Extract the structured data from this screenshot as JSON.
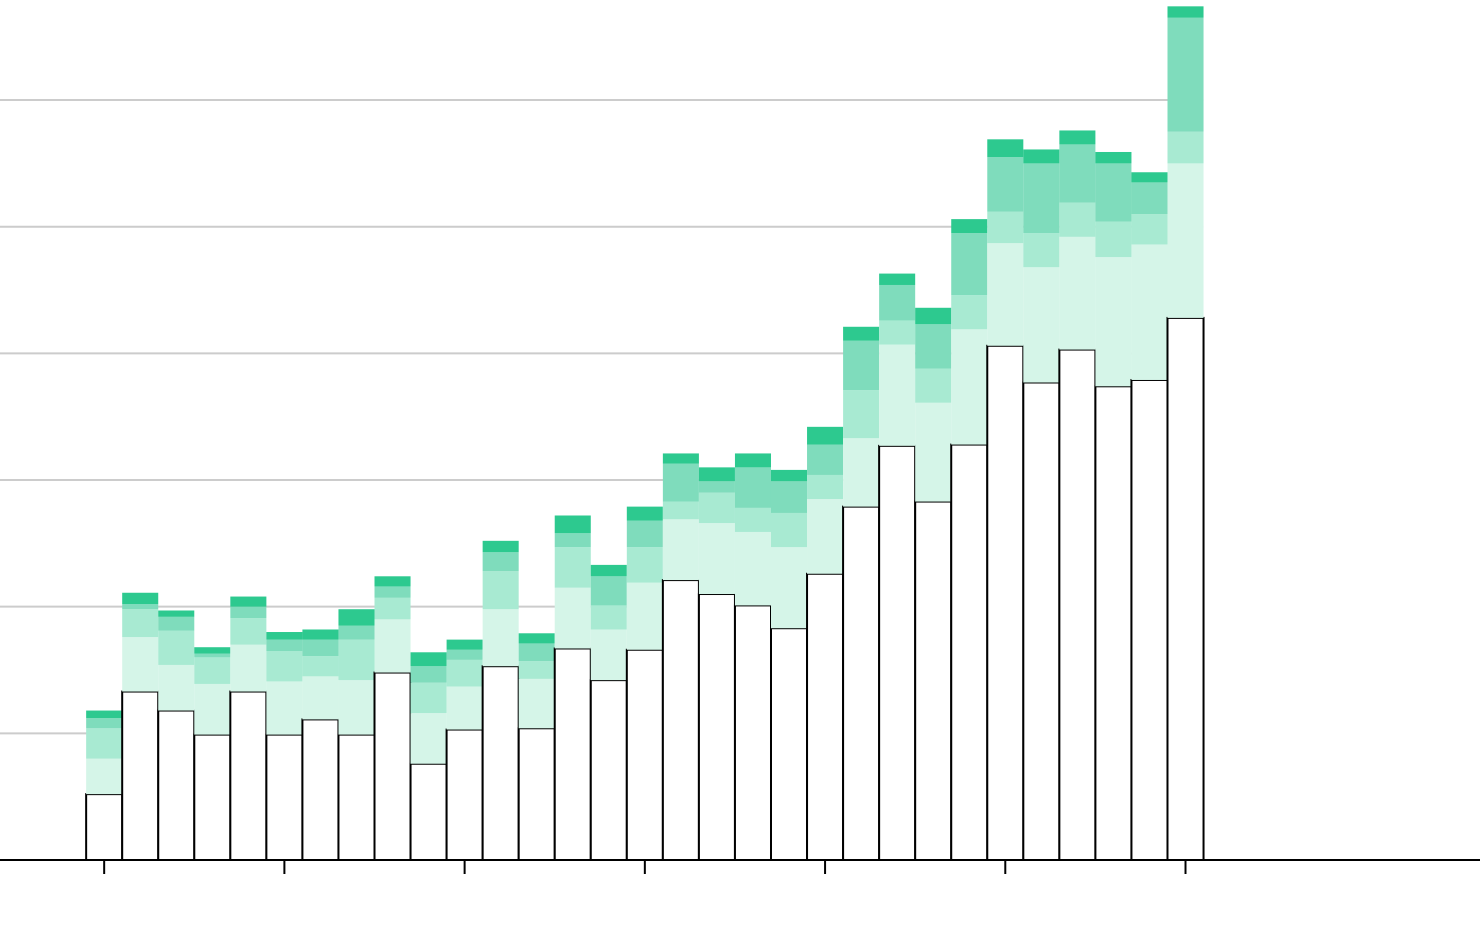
{
  "chart_data": {
    "type": "stacked-bar",
    "x": [
      0,
      1,
      2,
      3,
      4,
      5,
      6,
      7,
      8,
      9,
      10,
      11,
      12,
      13,
      14,
      15,
      16,
      17,
      18,
      19,
      20,
      21,
      22,
      23,
      24,
      25,
      26,
      27,
      28,
      29,
      30
    ],
    "xlim": [
      -2.89,
      38.17
    ],
    "xticks": [
      0,
      5,
      10,
      15,
      20,
      25,
      30
    ],
    "ylim": [
      0,
      6.79
    ],
    "yticks": [
      0,
      1,
      2,
      3,
      4,
      5,
      6
    ],
    "grid": true,
    "series": [
      {
        "color": "#ffffff",
        "values": [
          0.52,
          1.33,
          1.18,
          0.99,
          1.33,
          0.99,
          1.11,
          0.99,
          1.48,
          0.76,
          1.03,
          1.53,
          1.04,
          1.67,
          1.42,
          1.66,
          2.21,
          2.1,
          2.01,
          1.83,
          2.26,
          2.79,
          3.27,
          2.83,
          3.28,
          4.06,
          3.77,
          4.03,
          3.74,
          3.79,
          4.28
        ]
      },
      {
        "color": "#d5f5e8",
        "values": [
          0.28,
          0.43,
          0.36,
          0.4,
          0.37,
          0.42,
          0.34,
          0.43,
          0.42,
          0.4,
          0.34,
          0.45,
          0.39,
          0.48,
          0.4,
          0.53,
          0.48,
          0.56,
          0.58,
          0.64,
          0.59,
          0.54,
          0.8,
          0.78,
          0.91,
          0.81,
          0.91,
          0.89,
          1.02,
          1.07,
          1.22
        ]
      },
      {
        "color": "#a8ead2",
        "values": [
          0.24,
          0.22,
          0.27,
          0.21,
          0.21,
          0.24,
          0.16,
          0.32,
          0.17,
          0.24,
          0.21,
          0.3,
          0.14,
          0.32,
          0.19,
          0.28,
          0.14,
          0.24,
          0.19,
          0.27,
          0.19,
          0.38,
          0.19,
          0.27,
          0.27,
          0.25,
          0.27,
          0.27,
          0.28,
          0.24,
          0.25
        ]
      },
      {
        "color": "#7fdcbc",
        "values": [
          0.08,
          0.04,
          0.11,
          0.03,
          0.09,
          0.09,
          0.13,
          0.11,
          0.09,
          0.13,
          0.08,
          0.15,
          0.14,
          0.11,
          0.23,
          0.21,
          0.3,
          0.09,
          0.32,
          0.25,
          0.24,
          0.39,
          0.28,
          0.35,
          0.49,
          0.43,
          0.55,
          0.46,
          0.46,
          0.25,
          0.9
        ]
      },
      {
        "color": "#2dc98f",
        "values": [
          0.06,
          0.09,
          0.05,
          0.05,
          0.08,
          0.06,
          0.08,
          0.13,
          0.08,
          0.11,
          0.08,
          0.09,
          0.08,
          0.14,
          0.09,
          0.11,
          0.08,
          0.11,
          0.11,
          0.09,
          0.14,
          0.11,
          0.09,
          0.13,
          0.11,
          0.14,
          0.11,
          0.11,
          0.09,
          0.08,
          0.09
        ]
      }
    ]
  }
}
